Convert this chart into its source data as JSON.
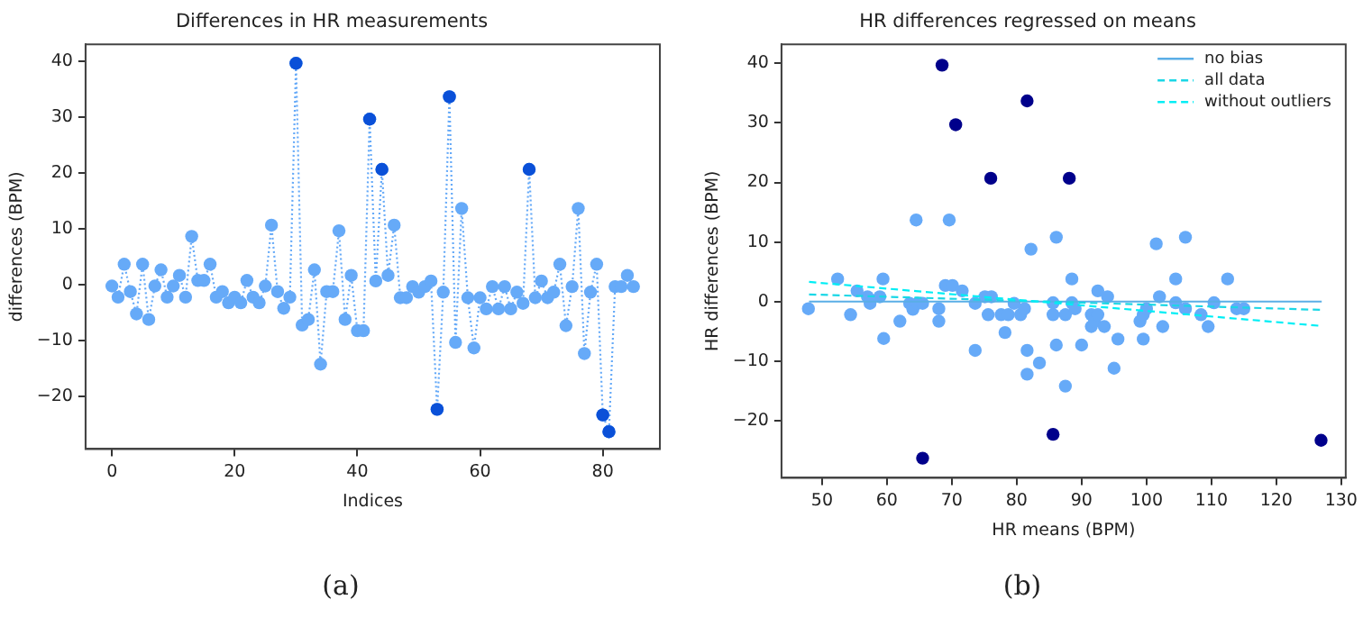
{
  "chart_data": [
    {
      "type": "line",
      "title": "Differences in HR measurements",
      "xlabel": "Indices",
      "ylabel": "differences (BPM)",
      "x": [
        0,
        1,
        2,
        3,
        4,
        5,
        6,
        7,
        8,
        9,
        10,
        11,
        12,
        13,
        14,
        15,
        16,
        17,
        18,
        19,
        20,
        21,
        22,
        23,
        24,
        25,
        26,
        27,
        28,
        29,
        30,
        31,
        32,
        33,
        34,
        35,
        36,
        37,
        38,
        39,
        40,
        41,
        42,
        43,
        44,
        45,
        46,
        47,
        48,
        49,
        50,
        51,
        52,
        53,
        54,
        55,
        56,
        57,
        58,
        59,
        60,
        61,
        62,
        63,
        64,
        65,
        66,
        67,
        68,
        69,
        70,
        71,
        72,
        73,
        74,
        75,
        76,
        77,
        78,
        79,
        80,
        81,
        82,
        83,
        84,
        85
      ],
      "series": [
        {
          "color": "#66aaf8",
          "marker": "circle",
          "line_style": "dotted",
          "values": [
            -0.2,
            -2.2,
            3.7,
            -1.2,
            -5.2,
            3.7,
            -6.2,
            -0.2,
            2.7,
            -2.2,
            -0.2,
            1.7,
            -2.2,
            8.7,
            0.8,
            0.8,
            3.7,
            -2.2,
            -1.2,
            -3.2,
            -2.2,
            -3.2,
            0.8,
            -2.2,
            -3.2,
            -0.2,
            10.7,
            -1.2,
            -4.2,
            -2.2,
            39.7,
            -7.2,
            -6.2,
            2.7,
            -14.2,
            -1.2,
            -1.2,
            9.7,
            -6.2,
            1.7,
            -8.2,
            -8.2,
            29.7,
            0.7,
            20.7,
            1.7,
            10.7,
            -2.3,
            -2.3,
            -0.3,
            -1.3,
            -0.3,
            0.7,
            -22.3,
            -1.3,
            33.7,
            -10.3,
            13.7,
            -2.3,
            -11.3,
            -2.3,
            -4.3,
            -0.3,
            -4.3,
            -0.3,
            -4.3,
            -1.3,
            -3.3,
            20.7,
            -2.3,
            0.7,
            -2.3,
            -1.3,
            3.7,
            -7.3,
            -0.3,
            13.7,
            -12.3,
            -1.3,
            3.7,
            -23.3,
            -26.3,
            -0.3,
            -0.3,
            1.7,
            -0.3
          ]
        },
        {
          "type": "scatter",
          "color": "#0a50d8",
          "marker": "circle",
          "x": [
            30,
            42,
            44,
            53,
            55,
            68,
            80,
            81
          ],
          "values": [
            39.7,
            29.7,
            20.7,
            -22.3,
            33.7,
            20.7,
            -23.3,
            -26.3
          ]
        }
      ],
      "xlim": [
        -4.3,
        89.3
      ],
      "xticks": [
        0,
        20,
        40,
        60,
        80
      ],
      "ylim": [
        -29.4,
        43.1
      ],
      "yticks": [
        -20,
        -10,
        0,
        10,
        20,
        30,
        40
      ],
      "grid": false,
      "legend": false,
      "annotations": [
        "(a)"
      ]
    },
    {
      "type": "scatter",
      "title": "HR differences regressed on means",
      "xlabel": "HR means (BPM)",
      "ylabel": "HR differences (BPM)",
      "series": [
        {
          "color": "#66aaf8",
          "marker": "circle",
          "x": [
            47.9,
            52.4,
            54.4,
            55.4,
            57.0,
            57.4,
            58.9,
            59.4,
            59.5,
            62.0,
            63.5,
            64.0,
            64.5,
            64.7,
            65.5,
            68.0,
            68.0,
            69.0,
            69.6,
            70.1,
            71.6,
            73.6,
            73.6,
            75.1,
            75.6,
            76.1,
            77.6,
            78.2,
            78.7,
            79.6,
            80.6,
            81.2,
            81.6,
            81.6,
            82.2,
            83.5,
            85.6,
            85.6,
            86.1,
            86.1,
            87.5,
            87.5,
            88.5,
            88.5,
            89.0,
            90.0,
            91.5,
            91.5,
            92.0,
            92.5,
            92.5,
            93.5,
            94.0,
            95.0,
            95.6,
            99.0,
            99.5,
            99.5,
            100.0,
            101.5,
            102.0,
            102.5,
            104.5,
            104.5,
            106.0,
            106.0,
            108.4,
            109.5,
            110.4,
            112.5,
            113.9,
            115.0
          ],
          "values": [
            -1.2,
            3.8,
            -2.2,
            1.8,
            0.8,
            -0.3,
            0.8,
            3.8,
            -6.2,
            -3.3,
            -0.3,
            -1.3,
            13.7,
            -0.3,
            -0.3,
            -1.2,
            -3.3,
            2.7,
            13.7,
            2.7,
            1.8,
            -0.3,
            -8.2,
            0.8,
            -2.2,
            0.8,
            -2.2,
            -5.2,
            -2.2,
            -0.3,
            -2.2,
            -1.2,
            -8.2,
            -12.2,
            8.8,
            -10.3,
            -0.2,
            -2.2,
            10.8,
            -7.3,
            -2.2,
            -14.2,
            3.8,
            -0.2,
            -1.2,
            -7.3,
            -2.2,
            -4.2,
            -3.3,
            1.8,
            -2.2,
            -4.2,
            0.8,
            -11.2,
            -6.3,
            -3.3,
            -2.2,
            -6.3,
            -1.2,
            9.7,
            0.8,
            -4.2,
            3.8,
            -0.2,
            10.8,
            -1.2,
            -2.2,
            -4.2,
            -0.2,
            3.8,
            -1.2,
            -1.2
          ]
        },
        {
          "color": "#00008b",
          "marker": "circle",
          "x": [
            68.5,
            70.6,
            76.0,
            65.5,
            81.6,
            88.1,
            85.6,
            126.9
          ],
          "values": [
            39.7,
            29.7,
            20.7,
            -26.3,
            33.7,
            20.7,
            -22.3,
            -23.3
          ]
        },
        {
          "type": "line",
          "name": "no bias",
          "color": "#5aaee6",
          "marker": "none",
          "line_style": "solid",
          "x": [
            48,
            127
          ],
          "values": [
            0,
            0
          ]
        },
        {
          "type": "line",
          "name": "all data",
          "color": "#1ad7e6",
          "marker": "none",
          "line_style": "dashed",
          "x": [
            48,
            127
          ],
          "values": [
            1.2,
            -1.4
          ]
        },
        {
          "type": "line",
          "name": "without outliers",
          "color": "#00eef5",
          "marker": "none",
          "line_style": "dashed",
          "x": [
            48,
            127
          ],
          "values": [
            3.3,
            -4.1
          ]
        }
      ],
      "xlim": [
        43.75,
        130.7
      ],
      "xticks": [
        50,
        60,
        70,
        80,
        90,
        100,
        110,
        120,
        130
      ],
      "ylim": [
        -29.6,
        43.2
      ],
      "yticks": [
        -20,
        -10,
        0,
        10,
        20,
        30,
        40
      ],
      "grid": false,
      "legend": "top right",
      "annotations": [
        "(b)"
      ]
    }
  ]
}
